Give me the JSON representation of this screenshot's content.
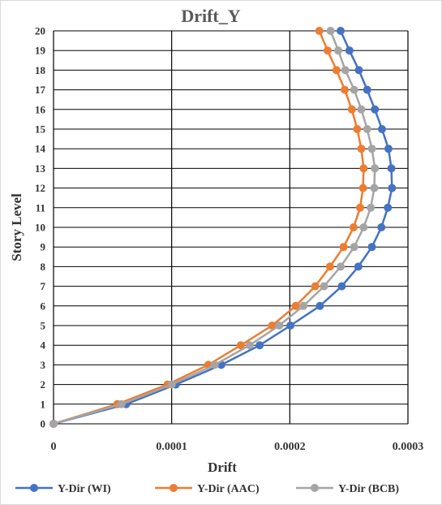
{
  "chart_data": {
    "type": "line",
    "title": "Drift_Y",
    "xlabel": "Drift",
    "ylabel": "Story Level",
    "xlim": [
      0,
      0.0003
    ],
    "ylim": [
      0,
      20
    ],
    "x_ticks": [
      0,
      0.0001,
      0.0002,
      0.0003
    ],
    "x_tick_labels": [
      "0",
      "0.0001",
      "0.0002",
      "0.0003"
    ],
    "y_ticks": [
      0,
      1,
      2,
      3,
      4,
      5,
      6,
      7,
      8,
      9,
      10,
      11,
      12,
      13,
      14,
      15,
      16,
      17,
      18,
      19,
      20
    ],
    "y_tick_labels": [
      "0",
      "1",
      "2",
      "3",
      "4",
      "5",
      "6",
      "7",
      "8",
      "9",
      "10",
      "11",
      "12",
      "13",
      "14",
      "15",
      "16",
      "17",
      "18",
      "19",
      "20"
    ],
    "grid": "vertical and horizontal major gridlines",
    "legend_position": "bottom",
    "stories": [
      0,
      1,
      2,
      3,
      4,
      5,
      6,
      7,
      8,
      9,
      10,
      11,
      12,
      13,
      14,
      15,
      16,
      17,
      18,
      19,
      20
    ],
    "series": [
      {
        "name": "Y-Dir (WI)",
        "color": "#4472C4",
        "x": [
          0,
          6.15e-05,
          0.0001035,
          0.000142,
          0.0001745,
          0.0002005,
          0.0002255,
          0.000244,
          0.000258,
          0.0002695,
          0.0002775,
          0.000283,
          0.0002865,
          0.000286,
          0.0002835,
          0.000278,
          0.000272,
          0.0002655,
          0.0002585,
          0.0002505,
          0.000243
        ]
      },
      {
        "name": "Y-Dir (AAC)",
        "color": "#ED7D31",
        "x": [
          0,
          5.4e-05,
          9.65e-05,
          0.000131,
          0.0001585,
          0.000185,
          0.000205,
          0.0002215,
          0.000234,
          0.0002455,
          0.000254,
          0.0002595,
          0.000262,
          0.0002625,
          0.0002605,
          0.000257,
          0.0002525,
          0.0002465,
          0.0002395,
          0.000232,
          0.000225
        ]
      },
      {
        "name": "Y-Dir (BCB)",
        "color": "#A5A5A5",
        "x": [
          0,
          5.75e-05,
          0.0001,
          0.0001365,
          0.000166,
          0.000191,
          0.0002115,
          0.000229,
          0.000243,
          0.0002545,
          0.0002625,
          0.0002685,
          0.0002715,
          0.000272,
          0.0002695,
          0.0002655,
          0.0002605,
          0.0002545,
          0.000247,
          0.000241,
          0.0002345
        ]
      }
    ]
  }
}
